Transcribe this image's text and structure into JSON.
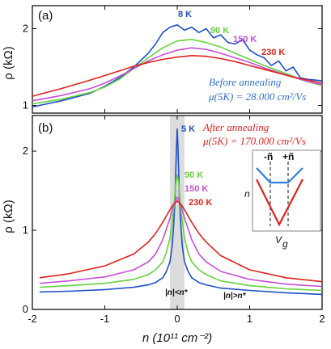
{
  "chart_data": [
    {
      "panel": "(a)",
      "type": "line",
      "xlim": [
        -2,
        2
      ],
      "ylim": [
        0.9,
        2.3
      ],
      "xticks": [
        "-2",
        "-1",
        "0",
        "1",
        "2"
      ],
      "yticks": [
        "1",
        "2"
      ],
      "ylabel": "ρ (kΩ)",
      "annotation": [
        "Before annealing",
        "μ(5K) = 28.000 cm²/Vs"
      ],
      "annotation_color": "#2f6fd0",
      "series": [
        {
          "name": "8 K",
          "color": "#1d4fc8",
          "x": [
            -2.0,
            -1.6,
            -1.2,
            -1.0,
            -0.8,
            -0.6,
            -0.4,
            -0.3,
            -0.2,
            -0.1,
            0.0,
            0.1,
            0.2,
            0.3,
            0.4,
            0.5,
            0.6,
            0.7,
            0.8,
            0.9,
            1.0,
            1.1,
            1.2,
            1.3,
            1.4,
            1.5,
            1.6,
            1.7,
            1.8,
            1.9,
            2.0
          ],
          "y": [
            0.98,
            1.06,
            1.16,
            1.25,
            1.36,
            1.5,
            1.68,
            1.8,
            1.95,
            2.02,
            2.05,
            1.98,
            2.02,
            1.95,
            2.0,
            1.88,
            1.92,
            1.82,
            1.8,
            1.86,
            1.72,
            1.66,
            1.62,
            1.52,
            1.58,
            1.45,
            1.5,
            1.36,
            1.34,
            1.33,
            1.32
          ]
        },
        {
          "name": "90 K",
          "color": "#66d23c",
          "x": [
            -2.0,
            -1.6,
            -1.2,
            -1.0,
            -0.8,
            -0.6,
            -0.4,
            -0.2,
            0.0,
            0.2,
            0.4,
            0.6,
            0.8,
            1.0,
            1.2,
            1.4,
            1.6,
            1.8,
            2.0
          ],
          "y": [
            1.02,
            1.08,
            1.17,
            1.24,
            1.34,
            1.48,
            1.62,
            1.75,
            1.84,
            1.86,
            1.82,
            1.76,
            1.68,
            1.6,
            1.52,
            1.45,
            1.38,
            1.31,
            1.26
          ]
        },
        {
          "name": "150 K",
          "color": "#c94fd6",
          "x": [
            -2.0,
            -1.6,
            -1.2,
            -1.0,
            -0.8,
            -0.6,
            -0.4,
            -0.2,
            0.0,
            0.2,
            0.4,
            0.6,
            0.8,
            1.0,
            1.2,
            1.4,
            1.6,
            1.8,
            2.0
          ],
          "y": [
            1.06,
            1.13,
            1.22,
            1.29,
            1.38,
            1.48,
            1.58,
            1.66,
            1.72,
            1.75,
            1.73,
            1.68,
            1.62,
            1.56,
            1.49,
            1.43,
            1.37,
            1.31,
            1.27
          ]
        },
        {
          "name": "230 K",
          "color": "#e0231c",
          "x": [
            -2.0,
            -1.6,
            -1.2,
            -1.0,
            -0.8,
            -0.6,
            -0.4,
            -0.2,
            0.0,
            0.2,
            0.4,
            0.6,
            0.8,
            1.0,
            1.2,
            1.4,
            1.6,
            1.8,
            2.0
          ],
          "y": [
            1.12,
            1.22,
            1.33,
            1.39,
            1.45,
            1.51,
            1.56,
            1.6,
            1.63,
            1.65,
            1.64,
            1.61,
            1.57,
            1.52,
            1.47,
            1.42,
            1.37,
            1.33,
            1.29
          ]
        }
      ]
    },
    {
      "panel": "(b)",
      "type": "line",
      "xlim": [
        -2,
        2
      ],
      "ylim": [
        0,
        2.45
      ],
      "xticks": [
        "-2",
        "-1",
        "0",
        "1",
        "2"
      ],
      "yticks": [
        "0",
        "1",
        "2"
      ],
      "xlabel": "n (10¹¹ cm⁻²)",
      "ylabel": "ρ (kΩ)",
      "annotation": [
        "After annealing",
        "μ(5K) = 170.000 cm²/Vs"
      ],
      "annotation_color": "#e0231c",
      "shaded_band_x": [
        -0.1,
        0.1
      ],
      "region_labels": [
        "|n|<n*",
        "|n|>n*"
      ],
      "series": [
        {
          "name": "5 K",
          "color": "#1d4fc8",
          "x": [
            -1.9,
            -1.5,
            -1.0,
            -0.6,
            -0.4,
            -0.3,
            -0.2,
            -0.15,
            -0.1,
            -0.07,
            -0.05,
            -0.03,
            -0.02,
            -0.01,
            0.0,
            0.01,
            0.02,
            0.03,
            0.05,
            0.07,
            0.1,
            0.15,
            0.2,
            0.3,
            0.4,
            0.6,
            1.0,
            1.5,
            2.0
          ],
          "y": [
            0.22,
            0.23,
            0.25,
            0.28,
            0.31,
            0.34,
            0.4,
            0.48,
            0.6,
            0.8,
            1.05,
            1.4,
            1.75,
            2.05,
            2.28,
            2.05,
            1.75,
            1.4,
            1.05,
            0.8,
            0.6,
            0.48,
            0.4,
            0.34,
            0.31,
            0.27,
            0.24,
            0.21,
            0.19
          ]
        },
        {
          "name": "90 K",
          "color": "#66d23c",
          "x": [
            -1.9,
            -1.5,
            -1.0,
            -0.6,
            -0.4,
            -0.3,
            -0.2,
            -0.15,
            -0.1,
            -0.05,
            -0.02,
            0.0,
            0.02,
            0.05,
            0.1,
            0.15,
            0.2,
            0.3,
            0.4,
            0.6,
            1.0,
            1.5,
            2.0
          ],
          "y": [
            0.28,
            0.3,
            0.33,
            0.38,
            0.44,
            0.5,
            0.6,
            0.72,
            0.9,
            1.25,
            1.6,
            1.7,
            1.6,
            1.25,
            0.9,
            0.72,
            0.6,
            0.5,
            0.44,
            0.36,
            0.3,
            0.26,
            0.24
          ]
        },
        {
          "name": "150 K",
          "color": "#c94fd6",
          "x": [
            -1.9,
            -1.5,
            -1.0,
            -0.6,
            -0.4,
            -0.3,
            -0.2,
            -0.1,
            -0.05,
            0.0,
            0.05,
            0.1,
            0.2,
            0.3,
            0.4,
            0.6,
            1.0,
            1.5,
            2.0
          ],
          "y": [
            0.33,
            0.36,
            0.41,
            0.5,
            0.6,
            0.7,
            0.88,
            1.15,
            1.32,
            1.42,
            1.32,
            1.15,
            0.88,
            0.7,
            0.6,
            0.48,
            0.38,
            0.32,
            0.29
          ]
        },
        {
          "name": "230 K",
          "color": "#e0231c",
          "x": [
            -1.9,
            -1.5,
            -1.0,
            -0.6,
            -0.4,
            -0.3,
            -0.2,
            -0.1,
            -0.05,
            0.0,
            0.05,
            0.1,
            0.2,
            0.3,
            0.4,
            0.6,
            1.0,
            1.5,
            2.0
          ],
          "y": [
            0.4,
            0.45,
            0.55,
            0.7,
            0.85,
            0.96,
            1.1,
            1.26,
            1.33,
            1.37,
            1.33,
            1.26,
            1.1,
            0.96,
            0.85,
            0.68,
            0.5,
            0.4,
            0.35
          ]
        }
      ],
      "inset": {
        "labels": [
          "-ñ",
          "+ñ",
          "n",
          "V",
          "g"
        ]
      }
    }
  ]
}
